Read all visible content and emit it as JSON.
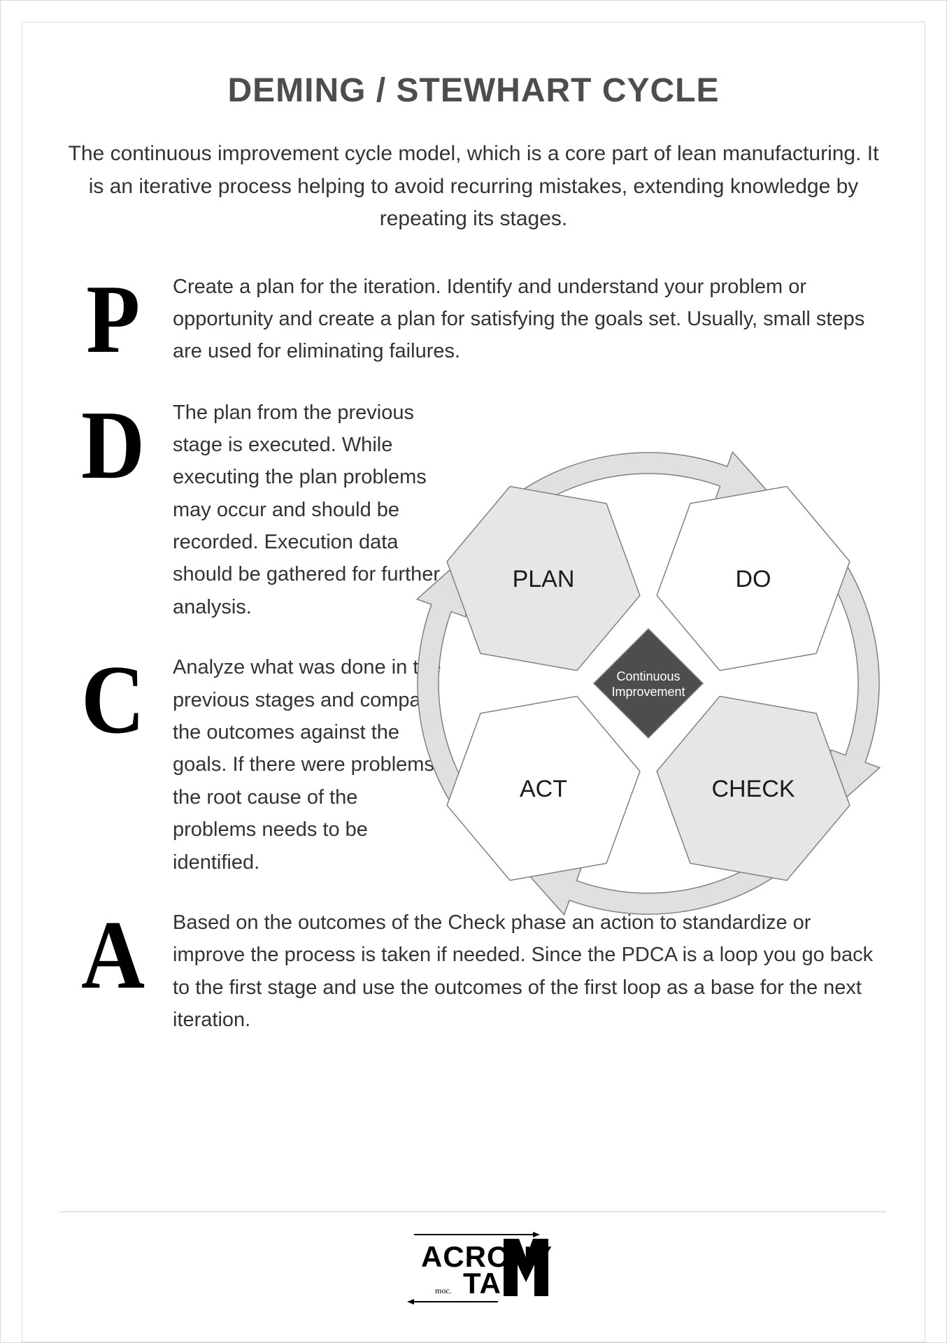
{
  "title": "DEMING / STEWHART CYCLE",
  "intro": "The continuous improvement cycle model, which is a core part of lean manufacturing. It is an iterative process helping to avoid recurring mistakes, extending knowledge by repeating its stages.",
  "stages": {
    "p": {
      "letter": "P",
      "text": "Create a plan for the iteration. Identify and understand your problem or opportunity and create a plan for satisfying the goals set. Usually, small steps are used for eliminating failures."
    },
    "d": {
      "letter": "D",
      "text": "The plan from the previous stage is executed. While executing the plan problems may occur and should be recorded. Execution data should be gathered for further analysis."
    },
    "c": {
      "letter": "C",
      "text": "Analyze what was done in the previous stages and compare the outcomes against the goals. If there were problems the root cause of the problems needs to be identified."
    },
    "a": {
      "letter": "A",
      "text": "Based on the outcomes of the Check phase an action to standardize or improve the process is taken if needed. Since the PDCA is a loop you go back to the first stage and use the outcomes of the first loop as a base for the next iteration."
    }
  },
  "diagram": {
    "type": "flowchart",
    "center_line1": "Continuous",
    "center_line2": "Improvement",
    "nodes": {
      "plan": {
        "label": "PLAN",
        "fill": "#e6e6e6"
      },
      "do": {
        "label": "DO",
        "fill": "#ffffff"
      },
      "check": {
        "label": "CHECK",
        "fill": "#e6e6e6"
      },
      "act": {
        "label": "ACT",
        "fill": "#ffffff"
      }
    },
    "colors": {
      "hex_stroke": "#808080",
      "center_fill": "#4d4d4d",
      "arrow_fill": "#e0e0e0",
      "arrow_stroke": "#808080",
      "background": "#ffffff"
    },
    "stroke_width": 1.5
  },
  "logo": {
    "line1": "ACRONY",
    "line2": "TA",
    "sub": "moc."
  }
}
